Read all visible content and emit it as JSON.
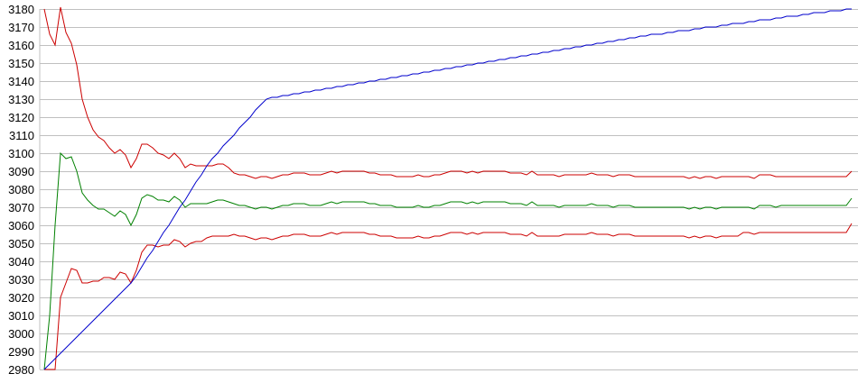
{
  "chart_data": {
    "type": "line",
    "title": "",
    "xlabel": "",
    "ylabel": "",
    "ylim": [
      2980,
      3180
    ],
    "yticks": [
      "3180",
      "3170",
      "3160",
      "3150",
      "3140",
      "3130",
      "3120",
      "3110",
      "3100",
      "3090",
      "3080",
      "3070",
      "3060",
      "3050",
      "3040",
      "3030",
      "3020",
      "3010",
      "3000",
      "2990",
      "2980"
    ],
    "grid": "horizontal",
    "legend": "none",
    "series": [
      {
        "color": "#cc0000",
        "values": [
          3180,
          3166,
          3160,
          3181,
          3167,
          3161,
          3149,
          3130,
          3120,
          3113,
          3109,
          3107,
          3103,
          3100,
          3102,
          3099,
          3092,
          3097,
          3105,
          3105,
          3103,
          3100,
          3099,
          3097,
          3100,
          3097,
          3092,
          3094,
          3093,
          3093,
          3093,
          3093,
          3094,
          3094,
          3092,
          3089,
          3088,
          3088,
          3087,
          3086,
          3087,
          3087,
          3086,
          3087,
          3088,
          3088,
          3089,
          3089,
          3089,
          3088,
          3088,
          3088,
          3089,
          3090,
          3089,
          3090,
          3090,
          3090,
          3090,
          3090,
          3089,
          3089,
          3088,
          3088,
          3088,
          3087,
          3087,
          3087,
          3087,
          3088,
          3087,
          3087,
          3088,
          3088,
          3089,
          3090,
          3090,
          3090,
          3089,
          3090,
          3089,
          3090,
          3090,
          3090,
          3090,
          3090,
          3089,
          3089,
          3089,
          3088,
          3090,
          3088,
          3088,
          3088,
          3088,
          3087,
          3088,
          3088,
          3088,
          3088,
          3088,
          3089,
          3088,
          3088,
          3088,
          3087,
          3088,
          3088,
          3088,
          3087,
          3087,
          3087,
          3087,
          3087,
          3087,
          3087,
          3087,
          3087,
          3087,
          3086,
          3087,
          3086,
          3087,
          3087,
          3086,
          3087,
          3087,
          3087,
          3087,
          3087,
          3087,
          3086,
          3088,
          3088,
          3088,
          3087,
          3087,
          3087,
          3087,
          3087,
          3087,
          3087,
          3087,
          3087,
          3087,
          3087,
          3087,
          3087,
          3087,
          3090
        ]
      },
      {
        "color": "#008000",
        "values": [
          2980,
          3010,
          3060,
          3100,
          3097,
          3098,
          3090,
          3078,
          3074,
          3071,
          3069,
          3069,
          3067,
          3065,
          3068,
          3066,
          3060,
          3066,
          3075,
          3077,
          3076,
          3074,
          3074,
          3073,
          3076,
          3074,
          3070,
          3072,
          3072,
          3072,
          3072,
          3073,
          3074,
          3074,
          3073,
          3072,
          3071,
          3071,
          3070,
          3069,
          3070,
          3070,
          3069,
          3070,
          3071,
          3071,
          3072,
          3072,
          3072,
          3071,
          3071,
          3071,
          3072,
          3073,
          3072,
          3073,
          3073,
          3073,
          3073,
          3073,
          3072,
          3072,
          3071,
          3071,
          3071,
          3070,
          3070,
          3070,
          3070,
          3071,
          3070,
          3070,
          3071,
          3071,
          3072,
          3073,
          3073,
          3073,
          3072,
          3073,
          3072,
          3073,
          3073,
          3073,
          3073,
          3073,
          3072,
          3072,
          3072,
          3071,
          3073,
          3071,
          3071,
          3071,
          3071,
          3070,
          3071,
          3071,
          3071,
          3071,
          3071,
          3072,
          3071,
          3071,
          3071,
          3070,
          3071,
          3071,
          3071,
          3070,
          3070,
          3070,
          3070,
          3070,
          3070,
          3070,
          3070,
          3070,
          3070,
          3069,
          3070,
          3069,
          3070,
          3070,
          3069,
          3070,
          3070,
          3070,
          3070,
          3070,
          3070,
          3069,
          3071,
          3071,
          3071,
          3070,
          3071,
          3071,
          3071,
          3071,
          3071,
          3071,
          3071,
          3071,
          3071,
          3071,
          3071,
          3071,
          3071,
          3075
        ]
      },
      {
        "color": "#cc0000",
        "values": [
          2980,
          2980,
          2980,
          3020,
          3028,
          3036,
          3035,
          3028,
          3028,
          3029,
          3029,
          3031,
          3031,
          3030,
          3034,
          3033,
          3028,
          3035,
          3045,
          3049,
          3049,
          3048,
          3049,
          3049,
          3052,
          3051,
          3048,
          3050,
          3051,
          3051,
          3053,
          3054,
          3054,
          3054,
          3054,
          3055,
          3054,
          3054,
          3053,
          3052,
          3053,
          3053,
          3052,
          3053,
          3054,
          3054,
          3055,
          3055,
          3055,
          3054,
          3054,
          3054,
          3055,
          3056,
          3055,
          3056,
          3056,
          3056,
          3056,
          3056,
          3055,
          3055,
          3054,
          3054,
          3054,
          3053,
          3053,
          3053,
          3053,
          3054,
          3053,
          3053,
          3054,
          3054,
          3055,
          3056,
          3056,
          3056,
          3055,
          3056,
          3055,
          3056,
          3056,
          3056,
          3056,
          3056,
          3055,
          3055,
          3055,
          3054,
          3056,
          3054,
          3054,
          3054,
          3054,
          3054,
          3055,
          3055,
          3055,
          3055,
          3055,
          3056,
          3055,
          3055,
          3055,
          3054,
          3055,
          3055,
          3055,
          3054,
          3054,
          3054,
          3054,
          3054,
          3054,
          3054,
          3054,
          3054,
          3054,
          3053,
          3054,
          3053,
          3054,
          3054,
          3053,
          3054,
          3054,
          3054,
          3054,
          3056,
          3056,
          3055,
          3056,
          3056,
          3056,
          3056,
          3056,
          3056,
          3056,
          3056,
          3056,
          3056,
          3056,
          3056,
          3056,
          3056,
          3056,
          3056,
          3056,
          3061
        ]
      },
      {
        "color": "#0000cc",
        "values": [
          2980,
          2983,
          2986,
          2989,
          2992,
          2995,
          2998,
          3001,
          3004,
          3007,
          3010,
          3013,
          3016,
          3019,
          3022,
          3025,
          3028,
          3032,
          3037,
          3042,
          3046,
          3051,
          3056,
          3060,
          3065,
          3070,
          3074,
          3079,
          3084,
          3088,
          3093,
          3097,
          3100,
          3104,
          3107,
          3110,
          3114,
          3117,
          3120,
          3124,
          3127,
          3130,
          3131,
          3131,
          3132,
          3132,
          3133,
          3133,
          3134,
          3134,
          3135,
          3135,
          3136,
          3136,
          3137,
          3137,
          3138,
          3138,
          3139,
          3139,
          3140,
          3140,
          3141,
          3141,
          3142,
          3142,
          3143,
          3143,
          3144,
          3144,
          3145,
          3145,
          3146,
          3146,
          3147,
          3147,
          3148,
          3148,
          3149,
          3149,
          3150,
          3150,
          3151,
          3151,
          3152,
          3152,
          3153,
          3153,
          3154,
          3154,
          3155,
          3155,
          3156,
          3156,
          3157,
          3157,
          3158,
          3158,
          3159,
          3159,
          3160,
          3160,
          3161,
          3161,
          3162,
          3162,
          3163,
          3163,
          3164,
          3164,
          3165,
          3165,
          3166,
          3166,
          3166,
          3167,
          3167,
          3168,
          3168,
          3168,
          3169,
          3169,
          3170,
          3170,
          3170,
          3171,
          3171,
          3172,
          3172,
          3172,
          3173,
          3173,
          3174,
          3174,
          3174,
          3175,
          3175,
          3176,
          3176,
          3176,
          3177,
          3177,
          3178,
          3178,
          3178,
          3179,
          3179,
          3179,
          3180,
          3180
        ]
      }
    ]
  }
}
